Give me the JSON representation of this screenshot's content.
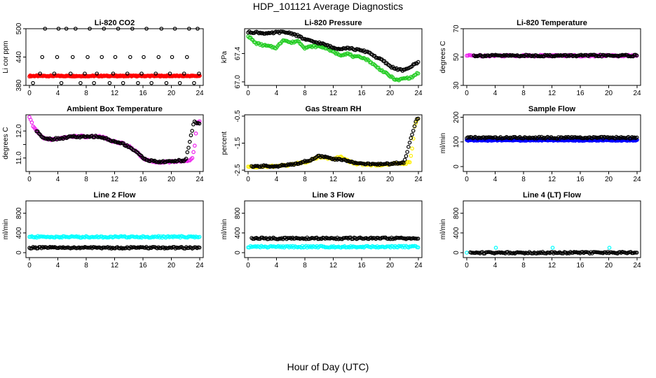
{
  "title": "HDP_101121  Average Diagnostics",
  "xlabel": "Hour of Day (UTC)",
  "colors": {
    "black": "#000000",
    "red": "#ff0000",
    "green": "#22cc22",
    "magenta": "#ee22ee",
    "yellow": "#ffee00",
    "blue": "#0000ff",
    "cyan": "#00ffff"
  },
  "chart_data": [
    {
      "type": "scatter",
      "title": "Li-820 CO2",
      "ylabel": "Li cor ppm",
      "xlim": [
        0,
        24
      ],
      "ylim": [
        380,
        500
      ],
      "xticks": [
        0,
        4,
        8,
        12,
        16,
        20,
        24
      ],
      "yticks": [
        380,
        440,
        500
      ],
      "series": [
        {
          "color": "red",
          "kind": "band",
          "x": [
            0,
            24
          ],
          "y": [
            400,
            400
          ]
        },
        {
          "color": "black",
          "kind": "points",
          "x": [
            0.5,
            1.5,
            1.8,
            2.2,
            3.5,
            3.9,
            4.1,
            4.5,
            5.2,
            5.8,
            6.1,
            6.5,
            7.2,
            7.8,
            8.2,
            8.5,
            9.1,
            9.5,
            10.2,
            10.5,
            11.3,
            11.8,
            12.1,
            12.5,
            13.2,
            13.8,
            14.2,
            14.5,
            15.3,
            15.8,
            16.1,
            16.5,
            17.2,
            17.8,
            18.2,
            18.6,
            19.3,
            19.8,
            20.1,
            20.5,
            21.2,
            21.8,
            22.2,
            22.5,
            23.2,
            23.7,
            23.9
          ],
          "y": [
            385,
            405,
            440,
            500,
            405,
            440,
            500,
            385,
            500,
            405,
            440,
            500,
            385,
            405,
            440,
            500,
            385,
            405,
            440,
            500,
            385,
            405,
            440,
            500,
            385,
            405,
            440,
            500,
            385,
            405,
            440,
            500,
            385,
            405,
            440,
            500,
            385,
            405,
            440,
            500,
            385,
            405,
            440,
            500,
            385,
            500,
            405
          ]
        }
      ]
    },
    {
      "type": "scatter",
      "title": "Li-820 Pressure",
      "ylabel": "kPa",
      "xlim": [
        0,
        24
      ],
      "ylim": [
        66.95,
        67.75
      ],
      "xticks": [
        0,
        4,
        8,
        12,
        16,
        20,
        24
      ],
      "yticks": [
        67.0,
        67.4
      ],
      "ytick_labels": [
        "67.0",
        "67.4"
      ],
      "series": [
        {
          "color": "green",
          "kind": "line",
          "x": [
            0,
            1,
            2,
            3,
            4,
            5,
            6,
            7,
            8,
            9,
            10,
            11,
            12,
            13,
            14,
            15,
            16,
            17,
            18,
            19,
            20,
            21,
            22,
            23,
            24
          ],
          "y": [
            67.65,
            67.55,
            67.52,
            67.5,
            67.48,
            67.6,
            67.55,
            67.58,
            67.48,
            67.5,
            67.5,
            67.48,
            67.42,
            67.38,
            67.4,
            67.35,
            67.35,
            67.3,
            67.22,
            67.15,
            67.08,
            67.02,
            67.05,
            67.06,
            67.13
          ]
        },
        {
          "color": "black",
          "kind": "line",
          "x": [
            0,
            1,
            2,
            3,
            4,
            5,
            6,
            7,
            8,
            9,
            10,
            11,
            12,
            13,
            14,
            15,
            16,
            17,
            18,
            19,
            20,
            21,
            22,
            23,
            24
          ],
          "y": [
            67.7,
            67.7,
            67.69,
            67.68,
            67.7,
            67.7,
            67.69,
            67.65,
            67.6,
            67.57,
            67.55,
            67.52,
            67.48,
            67.47,
            67.48,
            67.46,
            67.44,
            67.42,
            67.35,
            67.3,
            67.22,
            67.18,
            67.16,
            67.22,
            67.28
          ]
        }
      ]
    },
    {
      "type": "scatter",
      "title": "Li-820 Temperature",
      "ylabel": "degrees C",
      "xlim": [
        0,
        24
      ],
      "ylim": [
        30,
        70
      ],
      "xticks": [
        0,
        4,
        8,
        12,
        16,
        20,
        24
      ],
      "yticks": [
        30,
        50,
        70
      ],
      "series": [
        {
          "color": "magenta",
          "kind": "line",
          "x": [
            0,
            24
          ],
          "y": [
            51,
            51
          ]
        },
        {
          "color": "black",
          "kind": "line",
          "x": [
            1,
            24
          ],
          "y": [
            51,
            51
          ]
        }
      ]
    },
    {
      "type": "scatter",
      "title": "Ambient Box Temperature",
      "ylabel": "degrees C",
      "xlim": [
        0,
        24
      ],
      "ylim": [
        10.5,
        12.6
      ],
      "xticks": [
        0,
        4,
        8,
        12,
        16,
        20,
        24
      ],
      "yticks": [
        11.0,
        11.5,
        12.0
      ],
      "ytick_labels": [
        "11.0",
        "",
        "12.0"
      ],
      "series": [
        {
          "color": "magenta",
          "kind": "line",
          "x": [
            0,
            0.5,
            1,
            1.5,
            2,
            3,
            4,
            5,
            6,
            7,
            8,
            9,
            10,
            11,
            12,
            13,
            14,
            15,
            16,
            17,
            18,
            19,
            20,
            21,
            22,
            22.5,
            23,
            23.3,
            23.6,
            24
          ],
          "y": [
            12.5,
            12.2,
            12.0,
            11.85,
            11.75,
            11.68,
            11.72,
            11.75,
            11.8,
            11.82,
            11.78,
            11.8,
            11.8,
            11.7,
            11.6,
            11.55,
            11.45,
            11.25,
            11.0,
            10.88,
            10.85,
            10.85,
            10.87,
            10.88,
            10.9,
            10.9,
            11.0,
            11.5,
            12.3,
            12.35
          ]
        },
        {
          "color": "black",
          "kind": "line",
          "x": [
            1,
            2,
            3,
            4,
            5,
            6,
            7,
            8,
            9,
            10,
            11,
            12,
            13,
            14,
            15,
            16,
            17,
            18,
            19,
            20,
            21,
            22,
            23.2,
            23.6,
            24
          ],
          "y": [
            12.0,
            11.75,
            11.7,
            11.72,
            11.75,
            11.8,
            11.78,
            11.78,
            11.8,
            11.78,
            11.7,
            11.6,
            11.55,
            11.42,
            11.25,
            11.0,
            10.9,
            10.86,
            10.86,
            10.88,
            10.9,
            10.9,
            12.35,
            12.3,
            12.3
          ]
        }
      ]
    },
    {
      "type": "scatter",
      "title": "Gas Stream RH",
      "ylabel": "percent",
      "xlim": [
        0,
        24
      ],
      "ylim": [
        -2.55,
        -0.45
      ],
      "xticks": [
        0,
        4,
        8,
        12,
        16,
        20,
        24
      ],
      "yticks": [
        -2.5,
        -1.5,
        -0.5
      ],
      "ytick_labels": [
        "-2.5",
        "-1.5",
        "-0.5"
      ],
      "series": [
        {
          "color": "yellow",
          "kind": "line",
          "x": [
            0,
            2,
            4,
            6,
            8,
            9,
            10,
            11,
            12,
            13,
            14,
            15,
            16,
            17,
            18,
            19,
            20,
            21,
            22,
            22.8,
            23.2,
            23.5,
            24
          ],
          "y": [
            -2.38,
            -2.38,
            -2.35,
            -2.3,
            -2.2,
            -2.12,
            -2.0,
            -2.05,
            -2.1,
            -2.0,
            -2.15,
            -2.25,
            -2.28,
            -2.3,
            -2.3,
            -2.3,
            -2.28,
            -2.25,
            -2.25,
            -2.22,
            -1.6,
            -0.8,
            -0.55
          ]
        },
        {
          "color": "black",
          "kind": "line",
          "x": [
            0.5,
            2,
            4,
            6,
            8,
            9,
            10,
            11,
            12,
            13,
            14,
            15,
            16,
            17,
            18,
            19,
            20,
            21,
            22,
            23.5,
            23.8,
            24
          ],
          "y": [
            -2.38,
            -2.35,
            -2.35,
            -2.3,
            -2.18,
            -2.1,
            -1.98,
            -2.02,
            -2.1,
            -2.1,
            -2.15,
            -2.22,
            -2.25,
            -2.28,
            -2.28,
            -2.28,
            -2.26,
            -2.24,
            -2.22,
            -0.8,
            -0.6,
            -0.55
          ]
        }
      ]
    },
    {
      "type": "scatter",
      "title": "Sample Flow",
      "ylabel": "ml/min",
      "xlim": [
        0,
        24
      ],
      "ylim": [
        -20,
        210
      ],
      "xticks": [
        0,
        4,
        8,
        12,
        16,
        20,
        24
      ],
      "yticks": [
        0,
        100,
        200
      ],
      "series": [
        {
          "color": "blue",
          "kind": "band",
          "x": [
            0,
            24
          ],
          "y": [
            107,
            107
          ]
        },
        {
          "color": "black",
          "kind": "line",
          "x": [
            0,
            24
          ],
          "y": [
            117,
            117
          ]
        }
      ]
    },
    {
      "type": "scatter",
      "title": "Line 2 Flow",
      "ylabel": "ml/min",
      "xlim": [
        0,
        24
      ],
      "ylim": [
        -100,
        1050
      ],
      "xticks": [
        0,
        4,
        8,
        12,
        16,
        20,
        24
      ],
      "yticks": [
        0,
        400,
        800
      ],
      "series": [
        {
          "color": "cyan",
          "kind": "line",
          "x": [
            0,
            24
          ],
          "y": [
            320,
            320
          ]
        },
        {
          "color": "black",
          "kind": "line",
          "x": [
            0,
            24
          ],
          "y": [
            100,
            100
          ]
        }
      ]
    },
    {
      "type": "scatter",
      "title": "Line 3 Flow",
      "ylabel": "ml/min",
      "xlim": [
        0,
        24
      ],
      "ylim": [
        -100,
        1050
      ],
      "xticks": [
        0,
        4,
        8,
        12,
        16,
        20,
        24
      ],
      "yticks": [
        0,
        400,
        800
      ],
      "series": [
        {
          "color": "cyan",
          "kind": "line",
          "x": [
            0,
            24
          ],
          "y": [
            120,
            120
          ]
        },
        {
          "color": "black",
          "kind": "line",
          "x": [
            0.5,
            24
          ],
          "y": [
            290,
            290
          ]
        }
      ]
    },
    {
      "type": "scatter",
      "title": "Line 4 (LT) Flow",
      "ylabel": "ml/min",
      "xlim": [
        0,
        24
      ],
      "ylim": [
        -100,
        1050
      ],
      "xticks": [
        0,
        4,
        8,
        12,
        16,
        20,
        24
      ],
      "yticks": [
        0,
        400,
        800
      ],
      "series": [
        {
          "color": "cyan",
          "kind": "points",
          "x": [
            0,
            4.1,
            12.1,
            20.1
          ],
          "y": [
            0,
            100,
            100,
            100
          ]
        },
        {
          "color": "black",
          "kind": "line",
          "x": [
            0.5,
            24
          ],
          "y": [
            0,
            0
          ]
        }
      ]
    }
  ]
}
